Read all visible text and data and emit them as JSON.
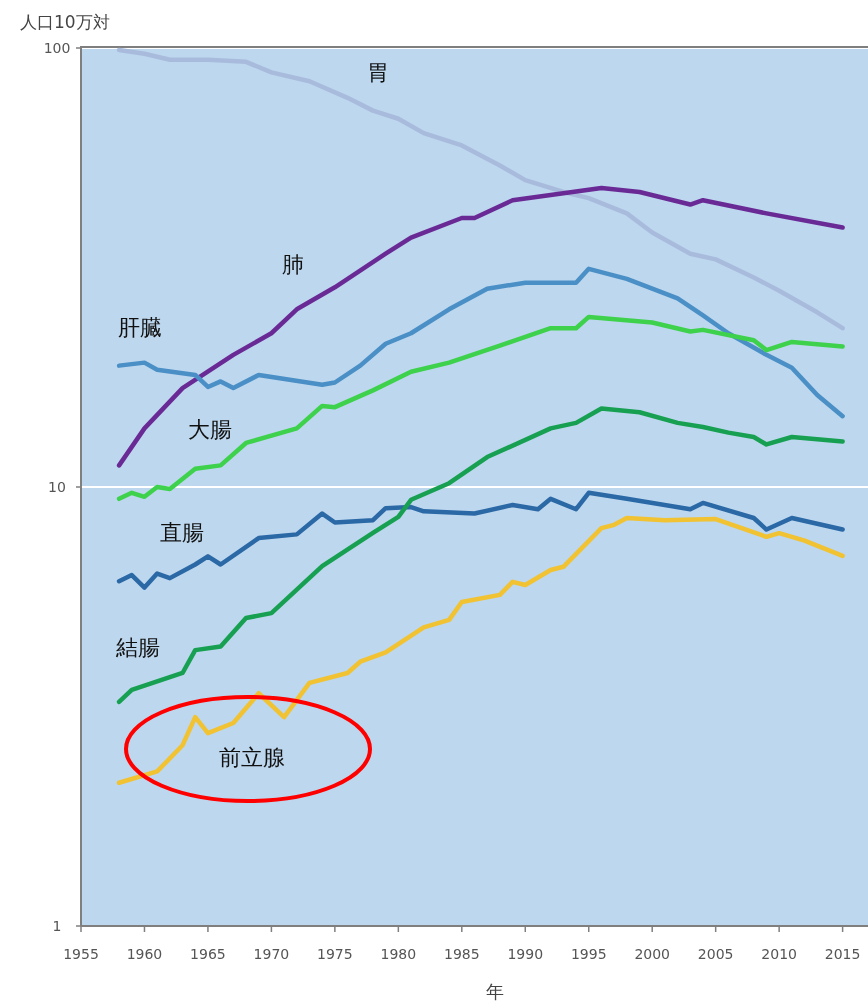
{
  "chart_data": {
    "type": "line",
    "ylabel": "人口10万対",
    "xlabel": "年",
    "log": true,
    "grid": "y",
    "xlim": [
      1955,
      2017
    ],
    "ylim": [
      1,
      100
    ],
    "xticks": [
      1955,
      1960,
      1965,
      1970,
      1975,
      1980,
      1985,
      1990,
      1995,
      2000,
      2005,
      2010,
      2015
    ],
    "yticks": [
      1,
      10,
      100
    ],
    "series": [
      {
        "name": "胃",
        "color": "#a9bbdc",
        "x": [
          1958,
          1960,
          1962,
          1965,
          1968,
          1970,
          1973,
          1976,
          1978,
          1980,
          1982,
          1985,
          1988,
          1990,
          1993,
          1995,
          1998,
          2000,
          2003,
          2005,
          2008,
          2010,
          2013,
          2015
        ],
        "values": [
          99,
          97,
          94,
          94,
          93,
          88,
          84,
          77,
          72,
          69,
          64,
          60,
          54,
          50,
          47,
          45.5,
          42,
          38,
          34,
          33,
          30,
          28,
          25,
          23
        ]
      },
      {
        "name": "肺",
        "color": "#6a2a96",
        "x": [
          1958,
          1960,
          1963,
          1967,
          1970,
          1972,
          1975,
          1979,
          1981,
          1985,
          1986,
          1989,
          1996,
          1999,
          2003,
          2004,
          2009,
          2015
        ],
        "values": [
          11.2,
          13.6,
          16.8,
          20,
          22.4,
          25.4,
          28.5,
          34,
          37,
          41,
          41,
          45,
          48,
          47,
          44,
          45,
          42,
          39
        ]
      },
      {
        "name": "肝臓",
        "color": "#4a8fc6",
        "x": [
          1958,
          1960,
          1961,
          1964,
          1965,
          1966,
          1967,
          1969,
          1974,
          1975,
          1977,
          1979,
          1981,
          1984,
          1987,
          1990,
          1994,
          1995,
          1998,
          2002,
          2004,
          2006,
          2009,
          2011,
          2013,
          2015
        ],
        "values": [
          18.9,
          19.2,
          18.5,
          18,
          16.9,
          17.4,
          16.8,
          18,
          17.1,
          17.3,
          18.9,
          21.2,
          22.4,
          25.4,
          28.3,
          29.2,
          29.2,
          31.4,
          29.8,
          26.9,
          24.6,
          22.4,
          20,
          18.7,
          16.2,
          14.5
        ]
      },
      {
        "name": "大腸",
        "color": "#3ed14c",
        "x": [
          1958,
          1959,
          1960,
          1961,
          1962,
          1964,
          1966,
          1968,
          1972,
          1974,
          1975,
          1978,
          1981,
          1984,
          1988,
          1992,
          1994,
          1995,
          2000,
          2003,
          2004,
          2008,
          2009,
          2011,
          2015
        ],
        "values": [
          9.4,
          9.7,
          9.5,
          10,
          9.9,
          11,
          11.2,
          12.6,
          13.6,
          15.3,
          15.2,
          16.6,
          18.3,
          19.2,
          21,
          23,
          23,
          24.4,
          23.7,
          22.6,
          22.8,
          21.6,
          20.5,
          21.4,
          20.9
        ]
      },
      {
        "name": "直腸",
        "color": "#2a68a6",
        "x": [
          1958,
          1959,
          1960,
          1961,
          1962,
          1964,
          1965,
          1966,
          1969,
          1972,
          1974,
          1975,
          1978,
          1979,
          1981,
          1982,
          1986,
          1989,
          1991,
          1992,
          1994,
          1995,
          1998,
          2003,
          2004,
          2008,
          2009,
          2011,
          2015
        ],
        "values": [
          6.1,
          6.3,
          5.9,
          6.35,
          6.2,
          6.66,
          6.95,
          6.66,
          7.65,
          7.8,
          8.7,
          8.3,
          8.4,
          8.95,
          9,
          8.8,
          8.7,
          9.1,
          8.9,
          9.4,
          8.9,
          9.7,
          9.4,
          8.9,
          9.2,
          8.5,
          8,
          8.5,
          8
        ]
      },
      {
        "name": "結腸",
        "color": "#17a052",
        "x": [
          1958,
          1959,
          1963,
          1964,
          1966,
          1968,
          1970,
          1974,
          1978,
          1980,
          1981,
          1984,
          1987,
          1992,
          1994,
          1996,
          1999,
          2002,
          2004,
          2006,
          2008,
          2009,
          2011,
          2015
        ],
        "values": [
          3.24,
          3.45,
          3.77,
          4.25,
          4.33,
          5.03,
          5.16,
          6.6,
          7.86,
          8.55,
          9.35,
          10.2,
          11.7,
          13.6,
          14,
          15.1,
          14.8,
          14,
          13.7,
          13.3,
          13,
          12.5,
          13,
          12.7
        ]
      },
      {
        "name": "前立腺",
        "color": "#f1c232",
        "x": [
          1958,
          1961,
          1963,
          1964,
          1965,
          1967,
          1969,
          1971,
          1973,
          1976,
          1977,
          1979,
          1982,
          1984,
          1985,
          1988,
          1989,
          1990,
          1992,
          1993,
          1996,
          1997,
          1998,
          2001,
          2005,
          2009,
          2010,
          2012,
          2015
        ],
        "values": [
          2.12,
          2.25,
          2.58,
          2.99,
          2.75,
          2.9,
          3.39,
          2.99,
          3.58,
          3.77,
          4,
          4.2,
          4.79,
          4.98,
          5.47,
          5.68,
          6.08,
          5.98,
          6.47,
          6.58,
          8.06,
          8.2,
          8.5,
          8.4,
          8.45,
          7.7,
          7.85,
          7.55,
          6.97
        ]
      }
    ]
  }
}
